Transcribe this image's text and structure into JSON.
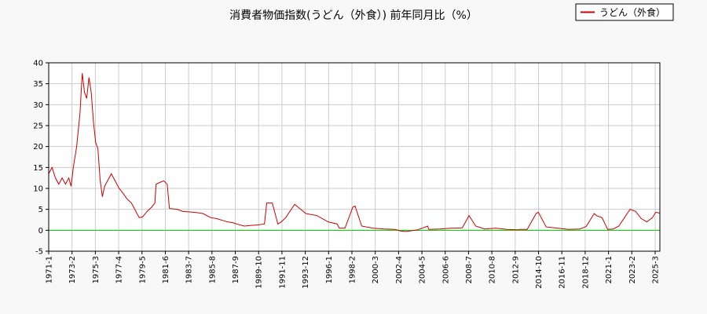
{
  "chart_data": {
    "type": "line",
    "title": "消費者物価指数(うどん（外食）) 前年同月比（%）",
    "xlabel": "",
    "ylabel": "",
    "ylim": [
      -5,
      40
    ],
    "yticks": [
      -5,
      0,
      5,
      10,
      15,
      20,
      25,
      30,
      35,
      40
    ],
    "x_range": [
      1971.0,
      2025.67
    ],
    "x_tick_labels": [
      "1971-1",
      "1973-2",
      "1975-3",
      "1977-4",
      "1979-5",
      "1981-6",
      "1983-7",
      "1985-8",
      "1987-9",
      "1989-10",
      "1991-11",
      "1993-12",
      "1996-1",
      "1998-2",
      "2000-3",
      "2002-4",
      "2004-5",
      "2006-6",
      "2008-7",
      "2010-8",
      "2012-9",
      "2014-10",
      "2016-11",
      "2018-12",
      "2021-1",
      "2023-2",
      "2025-3"
    ],
    "grid": true,
    "legend_position": "top-right",
    "colors": {
      "series": "#cc0000",
      "zero_line": "#00cc00",
      "grid": "#cccccc",
      "axis": "#000000"
    },
    "series": [
      {
        "name": "うどん（外食）",
        "x": [
          1971.0,
          1971.3,
          1971.6,
          1971.9,
          1972.2,
          1972.5,
          1972.8,
          1973.0,
          1973.2,
          1973.5,
          1973.8,
          1974.0,
          1974.2,
          1974.4,
          1974.6,
          1974.8,
          1975.0,
          1975.2,
          1975.4,
          1975.6,
          1975.8,
          1976.0,
          1976.3,
          1976.6,
          1977.0,
          1977.3,
          1977.6,
          1978.0,
          1978.4,
          1978.8,
          1979.1,
          1979.4,
          1979.8,
          1980.2,
          1980.5,
          1980.6,
          1981.0,
          1981.3,
          1981.6,
          1981.8,
          1982.5,
          1983.0,
          1984.0,
          1984.8,
          1985.5,
          1986.0,
          1987.0,
          1987.5,
          1987.8,
          1988.5,
          1989.3,
          1989.5,
          1990.3,
          1990.5,
          1991.0,
          1991.5,
          1991.8,
          1992.2,
          1993.0,
          1994.0,
          1995.0,
          1996.0,
          1996.8,
          1997.0,
          1997.5,
          1998.2,
          1998.4,
          1999.0,
          2000.0,
          2001.0,
          2002.0,
          2002.5,
          2003.0,
          2004.0,
          2004.9,
          2005.0,
          2006.0,
          2007.0,
          2007.5,
          2008.0,
          2008.6,
          2009.2,
          2010.0,
          2011.0,
          2012.0,
          2013.0,
          2013.1,
          2013.8,
          2014.6,
          2014.8,
          2015.5,
          2016.5,
          2017.5,
          2018.5,
          2019.0,
          2019.1,
          2019.8,
          2020.0,
          2020.5,
          2021.0,
          2021.5,
          2022.0,
          2022.5,
          2023.0,
          2023.5,
          2024.0,
          2024.5,
          2025.0,
          2025.3,
          2025.67
        ],
        "values": [
          13.5,
          15.0,
          12.5,
          11.0,
          12.5,
          11.0,
          12.5,
          10.5,
          15.0,
          20.0,
          28.0,
          37.5,
          33.0,
          31.5,
          36.5,
          33.0,
          26.0,
          21.0,
          19.5,
          12.0,
          8.0,
          10.5,
          12.0,
          13.5,
          11.5,
          10.0,
          9.0,
          7.5,
          6.5,
          4.5,
          3.0,
          3.2,
          4.5,
          5.5,
          6.5,
          11.0,
          11.5,
          11.8,
          11.0,
          5.2,
          5.0,
          4.5,
          4.3,
          4.0,
          3.0,
          2.8,
          2.0,
          1.8,
          1.5,
          1.0,
          1.2,
          1.2,
          1.5,
          6.5,
          6.5,
          1.5,
          2.0,
          3.0,
          6.2,
          4.0,
          3.5,
          2.0,
          1.5,
          0.5,
          0.5,
          5.5,
          5.8,
          1.0,
          0.5,
          0.3,
          0.2,
          -0.2,
          -0.3,
          0.1,
          1.0,
          0.2,
          0.3,
          0.5,
          0.5,
          0.6,
          3.5,
          1.0,
          0.3,
          0.5,
          0.2,
          0.1,
          0.2,
          0.2,
          4.0,
          4.3,
          0.8,
          0.5,
          0.2,
          0.3,
          0.8,
          1.0,
          4.0,
          3.5,
          3.0,
          0.2,
          0.3,
          1.0,
          3.0,
          5.0,
          4.5,
          2.8,
          2.0,
          3.0,
          4.3,
          4.1
        ]
      }
    ]
  }
}
